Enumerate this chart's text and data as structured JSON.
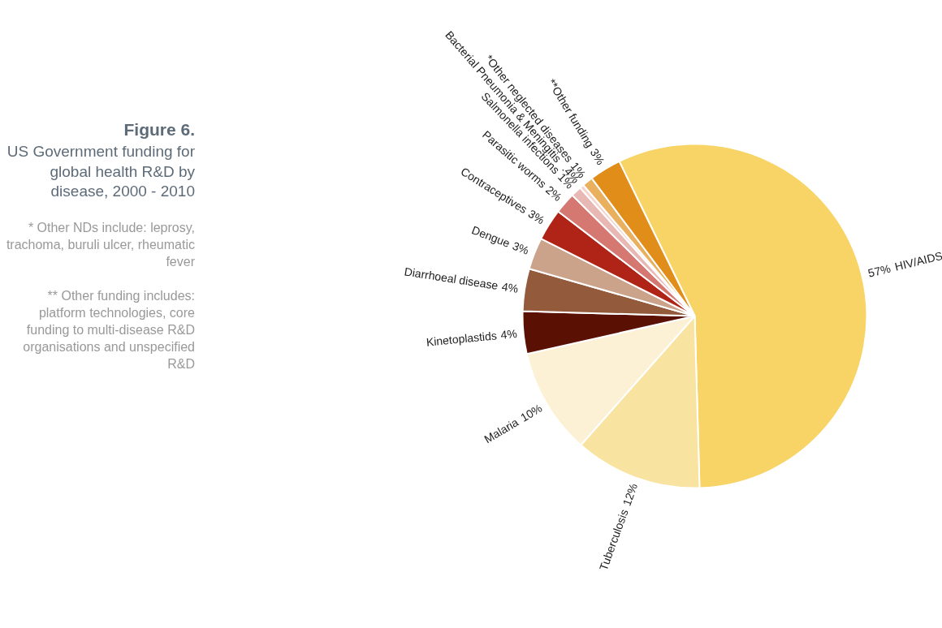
{
  "chart_data": {
    "type": "pie",
    "title": "Figure 6.",
    "subtitle": "US Government funding for global health R&D by disease, 2000 - 2010",
    "annotations": [
      "* Other NDs include: leprosy, trachoma, buruli ulcer, rheumatic fever",
      "** Other funding includes: platform technologies, core funding to multi-disease R&D organisations and unspecified R&D"
    ],
    "categories": [
      "HIV/AIDS",
      "Tuberculosis",
      "Malaria",
      "Kinetoplastids",
      "Diarrhoeal disease",
      "Dengue",
      "Contraceptives",
      "Parasitic worms",
      "Salmonella infections",
      "Bacterial Pneumonia & Meningitis",
      "*Other neglected diseases",
      "**Other funding"
    ],
    "values": [
      57,
      12,
      10,
      4,
      4,
      3,
      3,
      2,
      1,
      0.4,
      1,
      3
    ],
    "colors": [
      "#f8d466",
      "#f9e3a0",
      "#fcf1d4",
      "#5a1002",
      "#935a3c",
      "#cba28a",
      "#b02418",
      "#d57872",
      "#e8b8b5",
      "#f3d6cf",
      "#e9b060",
      "#e08d1a"
    ],
    "value_labels": [
      "57%",
      "12%",
      "10%",
      "4%",
      "4%",
      "3%",
      "3%",
      "2%",
      "1%",
      ".4%",
      "1%",
      "3%"
    ]
  }
}
